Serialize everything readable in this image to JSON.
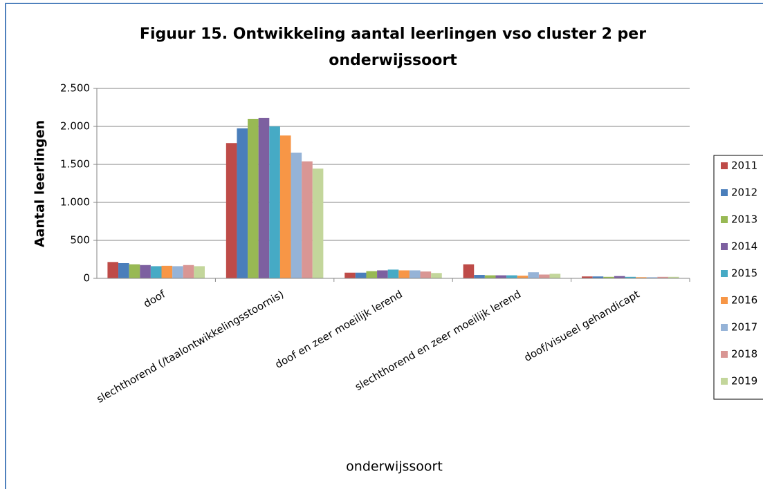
{
  "chart_data": {
    "type": "bar",
    "title": [
      "Figuur 15. Ontwikkeling aantal leerlingen vso cluster 2 per",
      "onderwijssoort"
    ],
    "y_label": "Aantal leerlingen",
    "x_label": "onderwijssoort",
    "categories": [
      "doof",
      "slechthorend (/taalontwikkelingsstoornis)",
      "doof en zeer moeilijk lerend",
      "slechthorend en zeer moeilijk lerend",
      "doof/visueel gehandicapt"
    ],
    "series": [
      {
        "name": "2011",
        "color": "#be4b48",
        "values": [
          215,
          1780,
          75,
          185,
          25
        ]
      },
      {
        "name": "2012",
        "color": "#4a7ebb",
        "values": [
          200,
          1975,
          75,
          45,
          25
        ]
      },
      {
        "name": "2013",
        "color": "#98b954",
        "values": [
          185,
          2100,
          95,
          40,
          20
        ]
      },
      {
        "name": "2014",
        "color": "#7d60a0",
        "values": [
          175,
          2110,
          105,
          40,
          30
        ]
      },
      {
        "name": "2015",
        "color": "#46aac5",
        "values": [
          160,
          2000,
          115,
          40,
          20
        ]
      },
      {
        "name": "2016",
        "color": "#f79646",
        "values": [
          165,
          1880,
          105,
          35,
          15
        ]
      },
      {
        "name": "2017",
        "color": "#95b3d7",
        "values": [
          160,
          1655,
          105,
          80,
          15
        ]
      },
      {
        "name": "2018",
        "color": "#d99694",
        "values": [
          175,
          1540,
          90,
          50,
          20
        ]
      },
      {
        "name": "2019",
        "color": "#c3d69b",
        "values": [
          160,
          1445,
          70,
          60,
          20
        ]
      }
    ],
    "ylim": [
      0,
      2500
    ],
    "yticks": [
      0,
      500,
      {
        "value": 1000,
        "label": "1.000"
      },
      {
        "value": 1500,
        "label": "1.500"
      },
      {
        "value": 2000,
        "label": "2.000"
      },
      {
        "value": 2500,
        "label": "2.500"
      }
    ],
    "grid": true,
    "legend": "right"
  }
}
